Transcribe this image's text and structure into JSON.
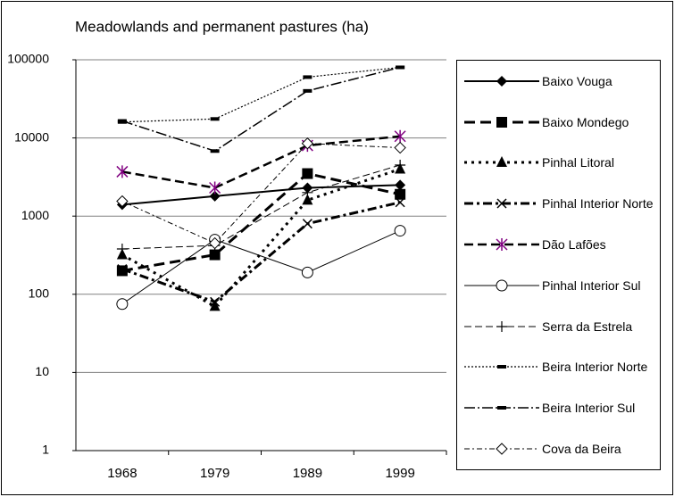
{
  "chart_data": {
    "type": "line",
    "title": "Meadowlands and permanent pastures (ha)",
    "categories": [
      "1968",
      "1979",
      "1989",
      "1999"
    ],
    "log_scale": true,
    "grid": true,
    "legend": "right",
    "ylim": [
      1,
      100000
    ],
    "yticks": [
      1,
      10,
      100,
      1000,
      10000,
      100000
    ],
    "series": [
      {
        "name": "Baixo Vouga",
        "color": "#000000",
        "marker": "diamond",
        "dash": "solid",
        "values": [
          1400,
          1800,
          2300,
          2500
        ]
      },
      {
        "name": "Baixo Mondego",
        "color": "#000000",
        "marker": "square",
        "dash": "long-dash",
        "values": [
          200,
          320,
          3500,
          1900
        ]
      },
      {
        "name": "Pinhal Litoral",
        "color": "#000000",
        "marker": "triangle",
        "dash": "dot",
        "values": [
          320,
          70,
          1600,
          4000
        ]
      },
      {
        "name": "Pinhal Interior Norte",
        "color": "#000000",
        "marker": "x",
        "dash": "dash-dot",
        "values": [
          210,
          80,
          800,
          1500
        ]
      },
      {
        "name": "Dão Lafões",
        "color": "#000000",
        "marker": "star",
        "marker_color": "#800080",
        "dash": "dash",
        "values": [
          3700,
          2300,
          8000,
          10500
        ]
      },
      {
        "name": "Pinhal Interior Sul",
        "color": "#000000",
        "marker": "circle",
        "dash": "solid-thin",
        "values": [
          75,
          500,
          190,
          650
        ]
      },
      {
        "name": "Serra da Estrela",
        "color": "#000000",
        "marker": "plus",
        "dash": "dash-thin",
        "values": [
          380,
          420,
          2000,
          4500
        ]
      },
      {
        "name": "Beira Interior Norte",
        "color": "#000000",
        "marker": "bar",
        "dash": "dot-thin",
        "values": [
          16000,
          17500,
          60000,
          80000
        ]
      },
      {
        "name": "Beira Interior Sul",
        "color": "#000000",
        "marker": "bar",
        "dash": "long-dash-dot",
        "values": [
          16500,
          6800,
          40000,
          80000
        ]
      },
      {
        "name": "Cova da Beira",
        "color": "#000000",
        "marker": "open-diamond",
        "dash": "dash-dot-thin",
        "values": [
          1550,
          450,
          8500,
          7500
        ]
      }
    ]
  }
}
